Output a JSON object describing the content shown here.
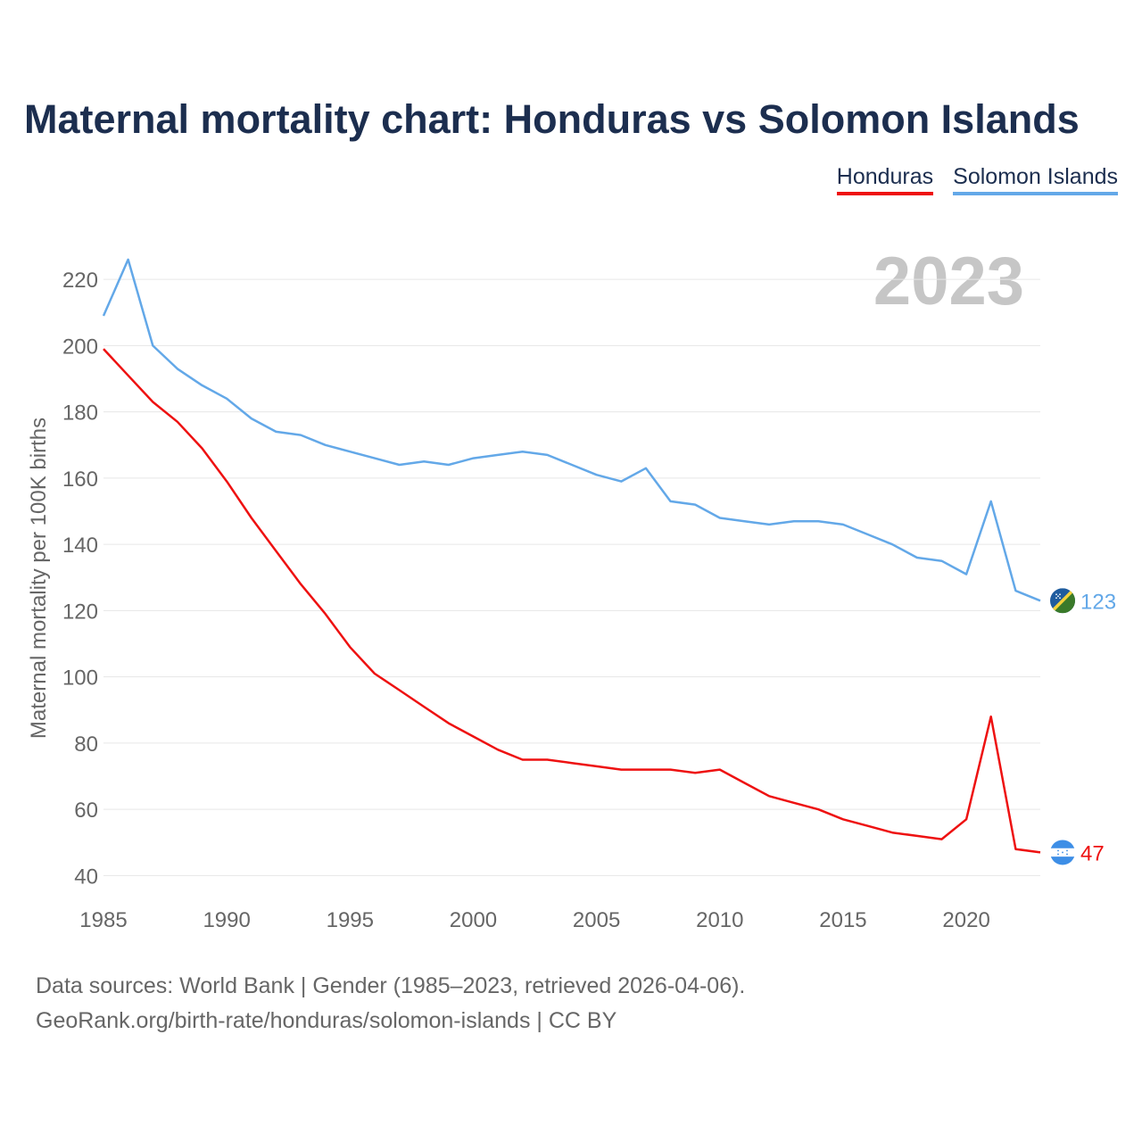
{
  "title": "Maternal mortality chart: Honduras vs Solomon Islands",
  "year_label": "2023",
  "legend": [
    {
      "name": "Honduras",
      "color": "#ee1111"
    },
    {
      "name": "Solomon Islands",
      "color": "#63a8e8"
    }
  ],
  "footer": {
    "line1": "Data sources: World Bank | Gender (1985–2023, retrieved 2026-04-06).",
    "line2": "GeoRank.org/birth-rate/honduras/solomon-islands | CC BY"
  },
  "flag_icons": [
    "solomon-islands-flag-icon",
    "honduras-flag-icon"
  ],
  "chart_data": {
    "type": "line",
    "ylabel": "Maternal mortality per 100K births",
    "xlabel": "",
    "xlim": [
      1985,
      2023
    ],
    "ylim": [
      35,
      230
    ],
    "yticks": [
      40,
      60,
      80,
      100,
      120,
      140,
      160,
      180,
      200,
      220
    ],
    "xticks": [
      1985,
      1990,
      1995,
      2000,
      2005,
      2010,
      2015,
      2020
    ],
    "grid": true,
    "x": [
      1985,
      1986,
      1987,
      1988,
      1989,
      1990,
      1991,
      1992,
      1993,
      1994,
      1995,
      1996,
      1997,
      1998,
      1999,
      2000,
      2001,
      2002,
      2003,
      2004,
      2005,
      2006,
      2007,
      2008,
      2009,
      2010,
      2011,
      2012,
      2013,
      2014,
      2015,
      2016,
      2017,
      2018,
      2019,
      2020,
      2021,
      2022,
      2023
    ],
    "series": [
      {
        "name": "Solomon Islands",
        "color": "#63a8e8",
        "end_label": "123",
        "values": [
          209,
          226,
          200,
          193,
          188,
          184,
          178,
          174,
          173,
          170,
          168,
          166,
          164,
          165,
          164,
          166,
          167,
          168,
          167,
          164,
          161,
          159,
          163,
          153,
          152,
          148,
          147,
          146,
          147,
          147,
          146,
          143,
          140,
          136,
          135,
          131,
          153,
          126,
          123
        ]
      },
      {
        "name": "Honduras",
        "color": "#ee1111",
        "end_label": "47",
        "values": [
          199,
          191,
          183,
          177,
          169,
          159,
          148,
          138,
          128,
          119,
          109,
          101,
          96,
          91,
          86,
          82,
          78,
          75,
          75,
          74,
          73,
          72,
          72,
          72,
          71,
          72,
          68,
          64,
          62,
          60,
          57,
          55,
          53,
          52,
          51,
          57,
          88,
          48,
          47
        ]
      }
    ]
  }
}
